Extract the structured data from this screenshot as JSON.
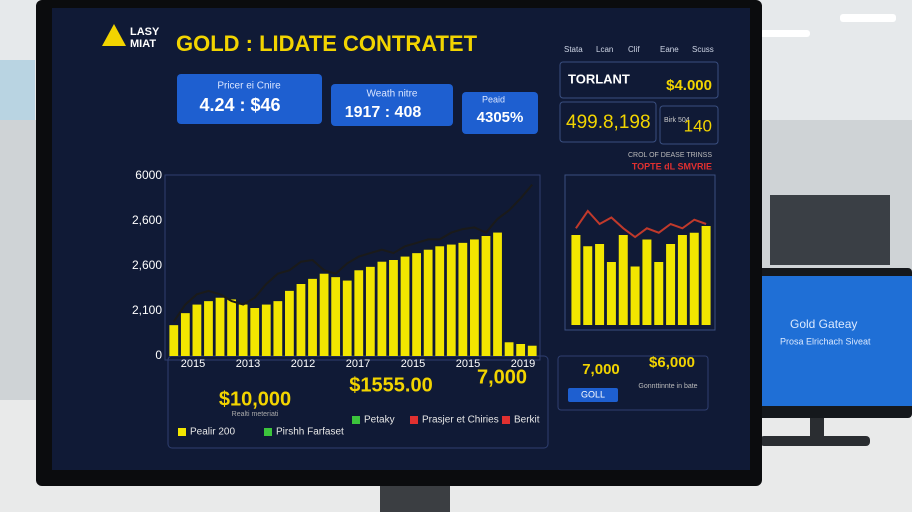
{
  "logo": {
    "line1": "LASY",
    "line2": "MIAT"
  },
  "title": "GOLD : LIDATE CONTRATET",
  "cards": [
    {
      "label": "Pricer ei Cnire",
      "value": "4.24 : $46"
    },
    {
      "label": "Weath nitre",
      "value": "1917 : 408"
    },
    {
      "label": "Peaid",
      "value": "4305%"
    }
  ],
  "tabs": [
    "Stata",
    "Lcan",
    "Clif",
    "Eane",
    "Scuss"
  ],
  "side_panel": {
    "header_label": "TORLANT",
    "header_value": "$4.000",
    "big_value": "499.8,198",
    "small_label": "Birk 504",
    "small_value": "140",
    "note": "CROL OF DEASE TRINSS",
    "alert": "TOPTE dL SMVRIE"
  },
  "main_chart": {
    "y_labels": [
      "6000",
      "2,600",
      "2,600",
      "2,100",
      "0"
    ],
    "x_labels": [
      "2015",
      "2013",
      "2012",
      "2017",
      "2015",
      "2015",
      "2019"
    ],
    "ylim": [
      0,
      105
    ],
    "bar_color": "#f2e600",
    "line_color": "#1a1a1a",
    "values": [
      18,
      25,
      30,
      32,
      34,
      33,
      30,
      28,
      30,
      32,
      38,
      42,
      45,
      48,
      46,
      44,
      50,
      52,
      55,
      56,
      58,
      60,
      62,
      64,
      65,
      66,
      68,
      70,
      72,
      8,
      7,
      6
    ],
    "line_values": [
      20,
      30,
      36,
      38,
      36,
      32,
      30,
      34,
      42,
      48,
      50,
      55,
      56,
      50,
      48,
      54,
      58,
      60,
      62,
      60,
      64,
      66,
      68,
      68,
      72,
      74,
      75,
      72,
      80,
      85,
      92,
      100
    ]
  },
  "side_chart": {
    "ylim": [
      0,
      60
    ],
    "bar_color": "#f2e600",
    "values": [
      40,
      35,
      36,
      28,
      40,
      26,
      38,
      28,
      36,
      40,
      41,
      44
    ],
    "line_color": "#c0392b",
    "line_ylim": [
      60,
      90
    ],
    "line_values": [
      70,
      78,
      72,
      75,
      70,
      66,
      70,
      68,
      72,
      70,
      74,
      72
    ]
  },
  "bottom_stats": [
    {
      "value": "$10,000",
      "label": "Realti meteriati"
    },
    {
      "value": "$1555.00"
    },
    {
      "value": "7,000"
    }
  ],
  "legend": [
    "Pealir 200",
    "Pirshh Farfaset",
    "Petaky",
    "Prasjer et Chiries",
    "Berkit"
  ],
  "side_bottom": {
    "value1": "7,000",
    "value2": "$6,000",
    "button": "GOLL",
    "caption": "Gonnttinnte in bate"
  },
  "second_monitor": {
    "title": "Gold Gateay",
    "subtitle": "Prosa Elrichach Siveat"
  }
}
